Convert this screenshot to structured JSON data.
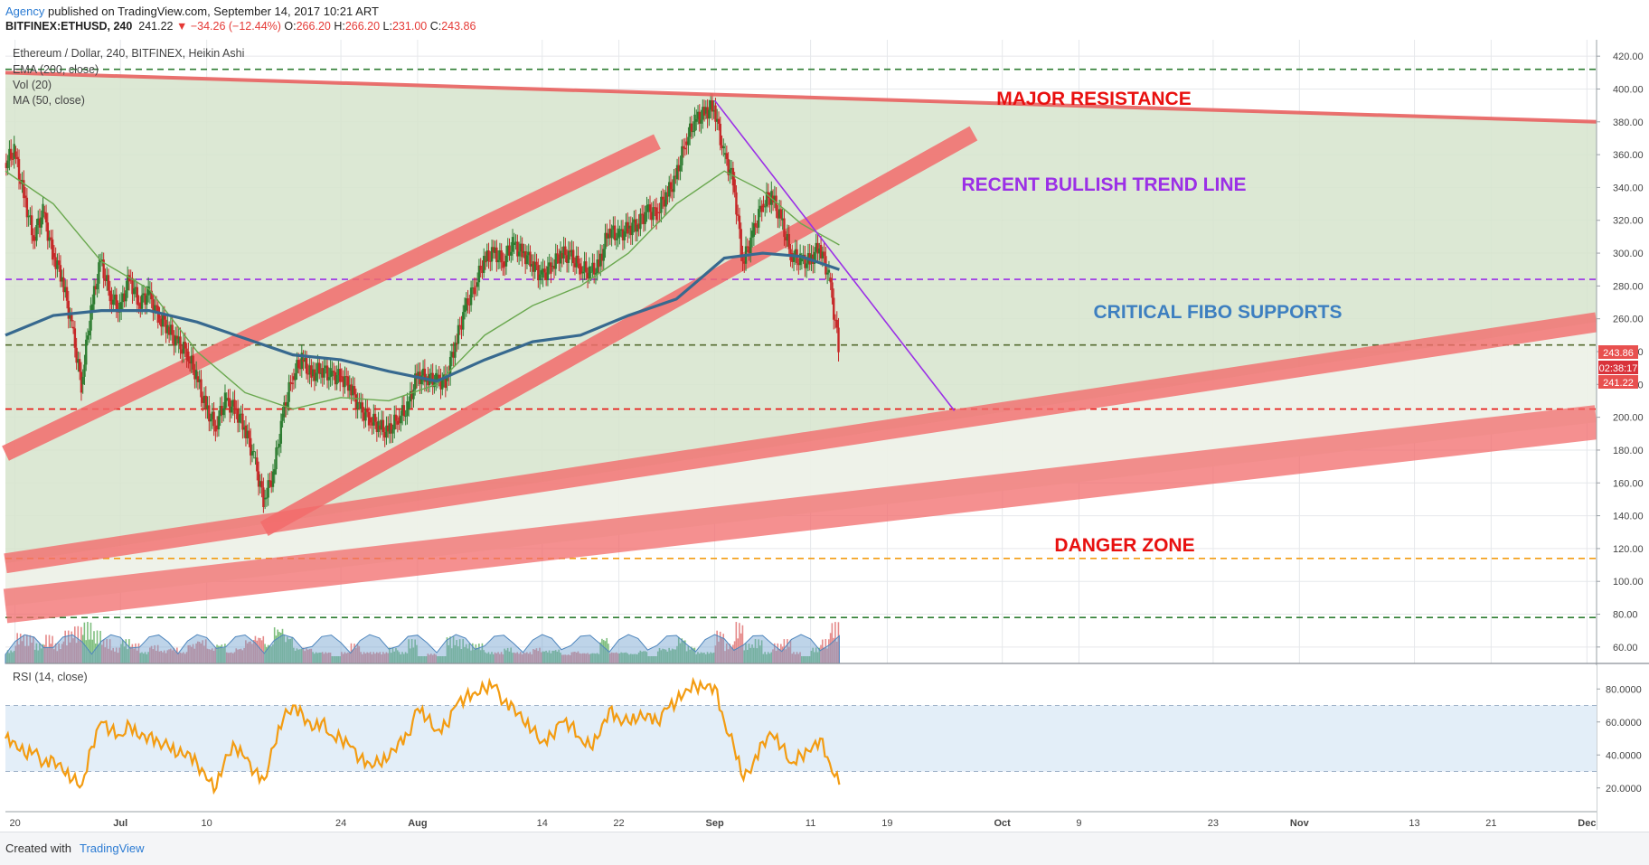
{
  "header": {
    "line1_link": "Agency",
    "line1_rest": " published on TradingView.com, September 14, 2017 10:21 ART",
    "symbol": "BITFINEX:ETHUSD, 240",
    "last": "241.22",
    "change": "−34.26 (−12.44%)",
    "open_label": "O:",
    "open": "266.20",
    "high_label": "H:",
    "high": "266.20",
    "low_label": "L:",
    "low": "231.00",
    "close_label": "C:",
    "close": "243.86"
  },
  "legend": {
    "title": "Ethereum / Dollar, 240, BITFINEX, Heikin Ashi",
    "ema": "EMA (200, close)",
    "vol": "Vol (20)",
    "ma": "MA (50, close)",
    "rsi": "RSI (14, close)"
  },
  "annotations": {
    "major_resistance": "MAJOR RESISTANCE",
    "bullish_trend": "RECENT BULLISH TREND LINE",
    "fibo": "CRITICAL FIBO SUPPORTS",
    "danger": "DANGER ZONE"
  },
  "price_badges": {
    "close": "243.86",
    "countdown": "02:38:17",
    "last": "241.22"
  },
  "footer": {
    "created": "Created with",
    "brand": "TradingView"
  },
  "colors": {
    "candle_up": "#2e7d32",
    "candle_down": "#c62828",
    "ema": "#37698f",
    "ma": "#6aa84f",
    "rsi": "#f39c12",
    "band": "#f26b6b",
    "resistance": "#e8605f",
    "annot_red": "#e8100f",
    "annot_purple": "#9b30e6",
    "annot_blue": "#3d7fc0"
  },
  "chart_data": {
    "type": "candlestick",
    "xlim": [
      "2017-06-19",
      "2017-12-02"
    ],
    "ylim": [
      50,
      430
    ],
    "grid": true,
    "x_ticks": [
      {
        "label": "20",
        "date": "2017-06-20"
      },
      {
        "label": "Jul",
        "date": "2017-07-01"
      },
      {
        "label": "10",
        "date": "2017-07-10"
      },
      {
        "label": "24",
        "date": "2017-07-24"
      },
      {
        "label": "Aug",
        "date": "2017-08-01"
      },
      {
        "label": "14",
        "date": "2017-08-14"
      },
      {
        "label": "22",
        "date": "2017-08-22"
      },
      {
        "label": "Sep",
        "date": "2017-09-01"
      },
      {
        "label": "11",
        "date": "2017-09-11"
      },
      {
        "label": "19",
        "date": "2017-09-19"
      },
      {
        "label": "Oct",
        "date": "2017-10-01"
      },
      {
        "label": "9",
        "date": "2017-10-09"
      },
      {
        "label": "23",
        "date": "2017-10-23"
      },
      {
        "label": "Nov",
        "date": "2017-11-01"
      },
      {
        "label": "13",
        "date": "2017-11-13"
      },
      {
        "label": "21",
        "date": "2017-11-21"
      },
      {
        "label": "Dec",
        "date": "2017-12-01"
      }
    ],
    "y_ticks": [
      "60.00",
      "80.00",
      "100.00",
      "120.00",
      "140.00",
      "160.00",
      "180.00",
      "200.00",
      "220.00",
      "240.00",
      "260.00",
      "280.00",
      "300.00",
      "320.00",
      "340.00",
      "360.00",
      "380.00",
      "400.00",
      "420.00"
    ],
    "price_path": [
      [
        "2017-06-19",
        355
      ],
      [
        "2017-06-20",
        362
      ],
      [
        "2017-06-21",
        335
      ],
      [
        "2017-06-22",
        310
      ],
      [
        "2017-06-23",
        325
      ],
      [
        "2017-06-24",
        300
      ],
      [
        "2017-06-25",
        285
      ],
      [
        "2017-06-26",
        255
      ],
      [
        "2017-06-27",
        220
      ],
      [
        "2017-06-28",
        265
      ],
      [
        "2017-06-29",
        295
      ],
      [
        "2017-06-30",
        275
      ],
      [
        "2017-07-01",
        265
      ],
      [
        "2017-07-02",
        285
      ],
      [
        "2017-07-03",
        270
      ],
      [
        "2017-07-04",
        275
      ],
      [
        "2017-07-05",
        262
      ],
      [
        "2017-07-06",
        255
      ],
      [
        "2017-07-07",
        245
      ],
      [
        "2017-07-08",
        240
      ],
      [
        "2017-07-09",
        225
      ],
      [
        "2017-07-10",
        205
      ],
      [
        "2017-07-11",
        195
      ],
      [
        "2017-07-12",
        210
      ],
      [
        "2017-07-13",
        205
      ],
      [
        "2017-07-14",
        195
      ],
      [
        "2017-07-15",
        175
      ],
      [
        "2017-07-16",
        150
      ],
      [
        "2017-07-17",
        165
      ],
      [
        "2017-07-18",
        200
      ],
      [
        "2017-07-19",
        225
      ],
      [
        "2017-07-20",
        235
      ],
      [
        "2017-07-21",
        225
      ],
      [
        "2017-07-22",
        230
      ],
      [
        "2017-07-23",
        225
      ],
      [
        "2017-07-24",
        225
      ],
      [
        "2017-07-25",
        220
      ],
      [
        "2017-07-26",
        205
      ],
      [
        "2017-07-27",
        200
      ],
      [
        "2017-07-28",
        195
      ],
      [
        "2017-07-29",
        190
      ],
      [
        "2017-07-30",
        200
      ],
      [
        "2017-07-31",
        205
      ],
      [
        "2017-08-01",
        225
      ],
      [
        "2017-08-02",
        225
      ],
      [
        "2017-08-03",
        222
      ],
      [
        "2017-08-04",
        222
      ],
      [
        "2017-08-05",
        245
      ],
      [
        "2017-08-06",
        265
      ],
      [
        "2017-08-07",
        280
      ],
      [
        "2017-08-08",
        295
      ],
      [
        "2017-08-09",
        300
      ],
      [
        "2017-08-10",
        295
      ],
      [
        "2017-08-11",
        305
      ],
      [
        "2017-08-12",
        300
      ],
      [
        "2017-08-13",
        295
      ],
      [
        "2017-08-14",
        285
      ],
      [
        "2017-08-15",
        292
      ],
      [
        "2017-08-16",
        300
      ],
      [
        "2017-08-17",
        298
      ],
      [
        "2017-08-18",
        292
      ],
      [
        "2017-08-19",
        288
      ],
      [
        "2017-08-20",
        292
      ],
      [
        "2017-08-21",
        315
      ],
      [
        "2017-08-22",
        310
      ],
      [
        "2017-08-23",
        315
      ],
      [
        "2017-08-24",
        318
      ],
      [
        "2017-08-25",
        325
      ],
      [
        "2017-08-26",
        325
      ],
      [
        "2017-08-27",
        335
      ],
      [
        "2017-08-28",
        345
      ],
      [
        "2017-08-29",
        368
      ],
      [
        "2017-08-30",
        380
      ],
      [
        "2017-08-31",
        385
      ],
      [
        "2017-09-01",
        390
      ],
      [
        "2017-09-02",
        360
      ],
      [
        "2017-09-03",
        345
      ],
      [
        "2017-09-04",
        295
      ],
      [
        "2017-09-05",
        310
      ],
      [
        "2017-09-06",
        330
      ],
      [
        "2017-09-07",
        335
      ],
      [
        "2017-09-08",
        320
      ],
      [
        "2017-09-09",
        300
      ],
      [
        "2017-09-10",
        295
      ],
      [
        "2017-09-11",
        295
      ],
      [
        "2017-09-12",
        305
      ],
      [
        "2017-09-13",
        285
      ],
      [
        "2017-09-14",
        243.86
      ]
    ],
    "ema200_path": [
      [
        "2017-06-19",
        250
      ],
      [
        "2017-06-24",
        262
      ],
      [
        "2017-06-29",
        265
      ],
      [
        "2017-07-04",
        265
      ],
      [
        "2017-07-09",
        258
      ],
      [
        "2017-07-14",
        248
      ],
      [
        "2017-07-19",
        238
      ],
      [
        "2017-07-24",
        235
      ],
      [
        "2017-07-29",
        228
      ],
      [
        "2017-08-03",
        222
      ],
      [
        "2017-08-08",
        235
      ],
      [
        "2017-08-13",
        246
      ],
      [
        "2017-08-18",
        250
      ],
      [
        "2017-08-23",
        262
      ],
      [
        "2017-08-28",
        272
      ],
      [
        "2017-09-02",
        297
      ],
      [
        "2017-09-06",
        300
      ],
      [
        "2017-09-10",
        298
      ],
      [
        "2017-09-14",
        290
      ]
    ],
    "ma50_path": [
      [
        "2017-06-19",
        350
      ],
      [
        "2017-06-24",
        330
      ],
      [
        "2017-06-29",
        295
      ],
      [
        "2017-07-04",
        278
      ],
      [
        "2017-07-09",
        240
      ],
      [
        "2017-07-14",
        215
      ],
      [
        "2017-07-19",
        205
      ],
      [
        "2017-07-24",
        212
      ],
      [
        "2017-07-29",
        210
      ],
      [
        "2017-08-03",
        220
      ],
      [
        "2017-08-08",
        250
      ],
      [
        "2017-08-13",
        268
      ],
      [
        "2017-08-18",
        280
      ],
      [
        "2017-08-23",
        300
      ],
      [
        "2017-08-28",
        330
      ],
      [
        "2017-09-02",
        350
      ],
      [
        "2017-09-06",
        338
      ],
      [
        "2017-09-10",
        318
      ],
      [
        "2017-09-14",
        305
      ]
    ],
    "volume_scale_note": "volume histogram (relative heights, no scale)",
    "rsi": {
      "ylim": [
        10,
        90
      ],
      "y_ticks": [
        "20.0000",
        "40.0000",
        "60.0000",
        "80.0000"
      ],
      "overbought": 70,
      "oversold": 30,
      "path": [
        [
          "2017-06-19",
          50
        ],
        [
          "2017-06-20",
          48
        ],
        [
          "2017-06-21",
          40
        ],
        [
          "2017-06-22",
          42
        ],
        [
          "2017-06-23",
          35
        ],
        [
          "2017-06-24",
          38
        ],
        [
          "2017-06-25",
          30
        ],
        [
          "2017-06-26",
          25
        ],
        [
          "2017-06-27",
          22
        ],
        [
          "2017-06-28",
          45
        ],
        [
          "2017-06-29",
          60
        ],
        [
          "2017-06-30",
          55
        ],
        [
          "2017-07-01",
          52
        ],
        [
          "2017-07-02",
          58
        ],
        [
          "2017-07-03",
          50
        ],
        [
          "2017-07-04",
          52
        ],
        [
          "2017-07-05",
          48
        ],
        [
          "2017-07-06",
          45
        ],
        [
          "2017-07-07",
          40
        ],
        [
          "2017-07-08",
          42
        ],
        [
          "2017-07-09",
          35
        ],
        [
          "2017-07-10",
          25
        ],
        [
          "2017-07-11",
          20
        ],
        [
          "2017-07-12",
          40
        ],
        [
          "2017-07-13",
          45
        ],
        [
          "2017-07-14",
          38
        ],
        [
          "2017-07-15",
          30
        ],
        [
          "2017-07-16",
          25
        ],
        [
          "2017-07-17",
          45
        ],
        [
          "2017-07-18",
          62
        ],
        [
          "2017-07-19",
          70
        ],
        [
          "2017-07-20",
          65
        ],
        [
          "2017-07-21",
          55
        ],
        [
          "2017-07-22",
          60
        ],
        [
          "2017-07-23",
          52
        ],
        [
          "2017-07-24",
          50
        ],
        [
          "2017-07-25",
          45
        ],
        [
          "2017-07-26",
          38
        ],
        [
          "2017-07-27",
          35
        ],
        [
          "2017-07-28",
          35
        ],
        [
          "2017-07-29",
          38
        ],
        [
          "2017-07-30",
          48
        ],
        [
          "2017-07-31",
          52
        ],
        [
          "2017-08-01",
          68
        ],
        [
          "2017-08-02",
          62
        ],
        [
          "2017-08-03",
          55
        ],
        [
          "2017-08-04",
          58
        ],
        [
          "2017-08-05",
          70
        ],
        [
          "2017-08-06",
          75
        ],
        [
          "2017-08-07",
          78
        ],
        [
          "2017-08-08",
          80
        ],
        [
          "2017-08-09",
          82
        ],
        [
          "2017-08-10",
          72
        ],
        [
          "2017-08-11",
          70
        ],
        [
          "2017-08-12",
          60
        ],
        [
          "2017-08-13",
          55
        ],
        [
          "2017-08-14",
          48
        ],
        [
          "2017-08-15",
          52
        ],
        [
          "2017-08-16",
          60
        ],
        [
          "2017-08-17",
          58
        ],
        [
          "2017-08-18",
          50
        ],
        [
          "2017-08-19",
          45
        ],
        [
          "2017-08-20",
          52
        ],
        [
          "2017-08-21",
          68
        ],
        [
          "2017-08-22",
          62
        ],
        [
          "2017-08-23",
          60
        ],
        [
          "2017-08-24",
          62
        ],
        [
          "2017-08-25",
          65
        ],
        [
          "2017-08-26",
          60
        ],
        [
          "2017-08-27",
          68
        ],
        [
          "2017-08-28",
          72
        ],
        [
          "2017-08-29",
          80
        ],
        [
          "2017-08-30",
          82
        ],
        [
          "2017-08-31",
          80
        ],
        [
          "2017-09-01",
          82
        ],
        [
          "2017-09-02",
          60
        ],
        [
          "2017-09-03",
          45
        ],
        [
          "2017-09-04",
          25
        ],
        [
          "2017-09-05",
          35
        ],
        [
          "2017-09-06",
          48
        ],
        [
          "2017-09-07",
          52
        ],
        [
          "2017-09-08",
          45
        ],
        [
          "2017-09-09",
          35
        ],
        [
          "2017-09-10",
          40
        ],
        [
          "2017-09-11",
          42
        ],
        [
          "2017-09-12",
          50
        ],
        [
          "2017-09-13",
          35
        ],
        [
          "2017-09-14",
          22
        ]
      ]
    },
    "lines": [
      {
        "name": "major-resistance",
        "from": [
          "2017-06-19",
          410
        ],
        "to": [
          "2017-12-02",
          380
        ]
      },
      {
        "name": "down-trendline",
        "from": [
          "2017-09-01",
          393
        ],
        "to": [
          "2017-09-26",
          204
        ]
      },
      {
        "name": "channel-upper",
        "from": [
          "2017-06-19",
          178
        ],
        "to": [
          "2017-08-26",
          368
        ]
      },
      {
        "name": "channel-lower",
        "from": [
          "2017-07-16",
          132
        ],
        "to": [
          "2017-09-28",
          373
        ]
      },
      {
        "name": "fibo-band-upper",
        "from": [
          "2017-06-19",
          111
        ],
        "to": [
          "2017-12-02",
          258
        ]
      },
      {
        "name": "fibo-band-lower",
        "from": [
          "2017-06-19",
          85
        ],
        "to": [
          "2017-12-02",
          197
        ]
      }
    ],
    "horizontal_levels": [
      {
        "value": 412,
        "color": "#2e7d32"
      },
      {
        "value": 284,
        "color": "#9b30e6"
      },
      {
        "value": 244,
        "color": "#556b2f"
      },
      {
        "value": 205,
        "color": "#e8100f"
      },
      {
        "value": 114,
        "color": "#f39c12"
      },
      {
        "value": 78,
        "color": "#2e7d32"
      }
    ]
  }
}
